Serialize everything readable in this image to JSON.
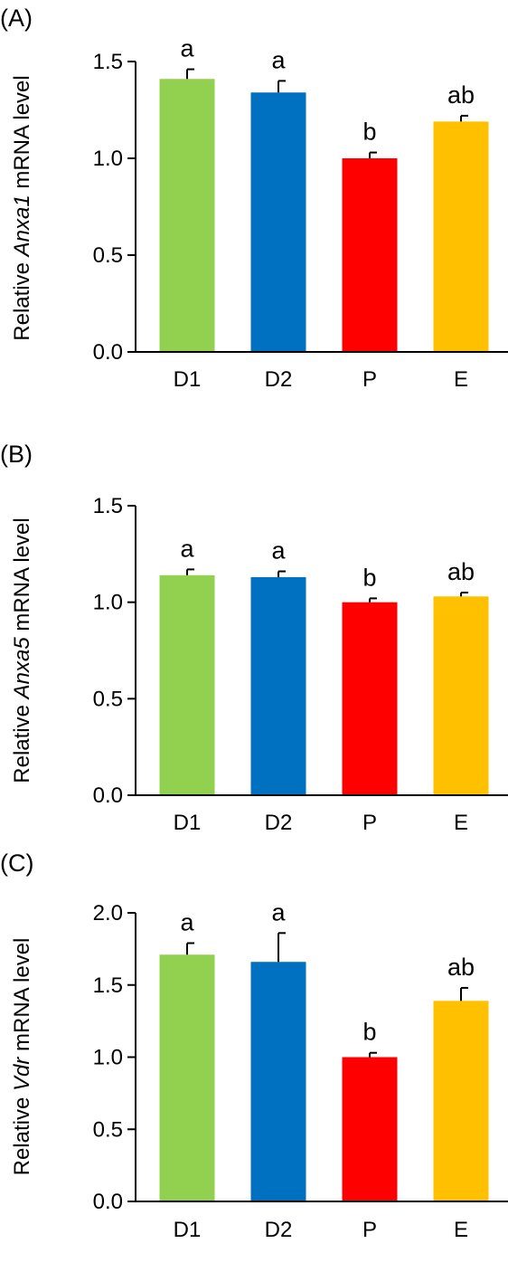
{
  "chart_data": [
    {
      "type": "bar",
      "panel_label": "(A)",
      "ylabel": {
        "prefix": "Relative ",
        "gene": "Anxa1",
        "suffix": " mRNA level"
      },
      "categories": [
        "D1",
        "D2",
        "P",
        "E"
      ],
      "values": [
        1.41,
        1.34,
        1.0,
        1.19
      ],
      "errors": [
        0.05,
        0.06,
        0.03,
        0.03
      ],
      "significance": [
        "a",
        "a",
        "b",
        "ab"
      ],
      "colors": [
        "#92d050",
        "#0070c0",
        "#ff0000",
        "#ffc000"
      ],
      "ylim": [
        0,
        1.5
      ],
      "yticks": [
        "0.0",
        "0.5",
        "1.0",
        "1.5"
      ],
      "grid": false
    },
    {
      "type": "bar",
      "panel_label": "(B)",
      "ylabel": {
        "prefix": "Relative ",
        "gene": "Anxa5",
        "suffix": " mRNA  level"
      },
      "categories": [
        "D1",
        "D2",
        "P",
        "E"
      ],
      "values": [
        1.14,
        1.13,
        1.0,
        1.03
      ],
      "errors": [
        0.03,
        0.03,
        0.02,
        0.02
      ],
      "significance": [
        "a",
        "a",
        "b",
        "ab"
      ],
      "colors": [
        "#92d050",
        "#0070c0",
        "#ff0000",
        "#ffc000"
      ],
      "ylim": [
        0,
        1.5
      ],
      "yticks": [
        "0.0",
        "0.5",
        "1.0",
        "1.5"
      ],
      "grid": false
    },
    {
      "type": "bar",
      "panel_label": "(C)",
      "ylabel": {
        "prefix": "Relative ",
        "gene": "Vdr",
        "suffix": " mRNA level"
      },
      "categories": [
        "D1",
        "D2",
        "P",
        "E"
      ],
      "values": [
        1.71,
        1.66,
        1.0,
        1.39
      ],
      "errors": [
        0.08,
        0.2,
        0.03,
        0.09
      ],
      "significance": [
        "a",
        "a",
        "b",
        "ab"
      ],
      "colors": [
        "#92d050",
        "#0070c0",
        "#ff0000",
        "#ffc000"
      ],
      "ylim": [
        0,
        2.0
      ],
      "yticks": [
        "0.0",
        "0.5",
        "1.0",
        "1.5",
        "2.0"
      ],
      "grid": false
    }
  ]
}
